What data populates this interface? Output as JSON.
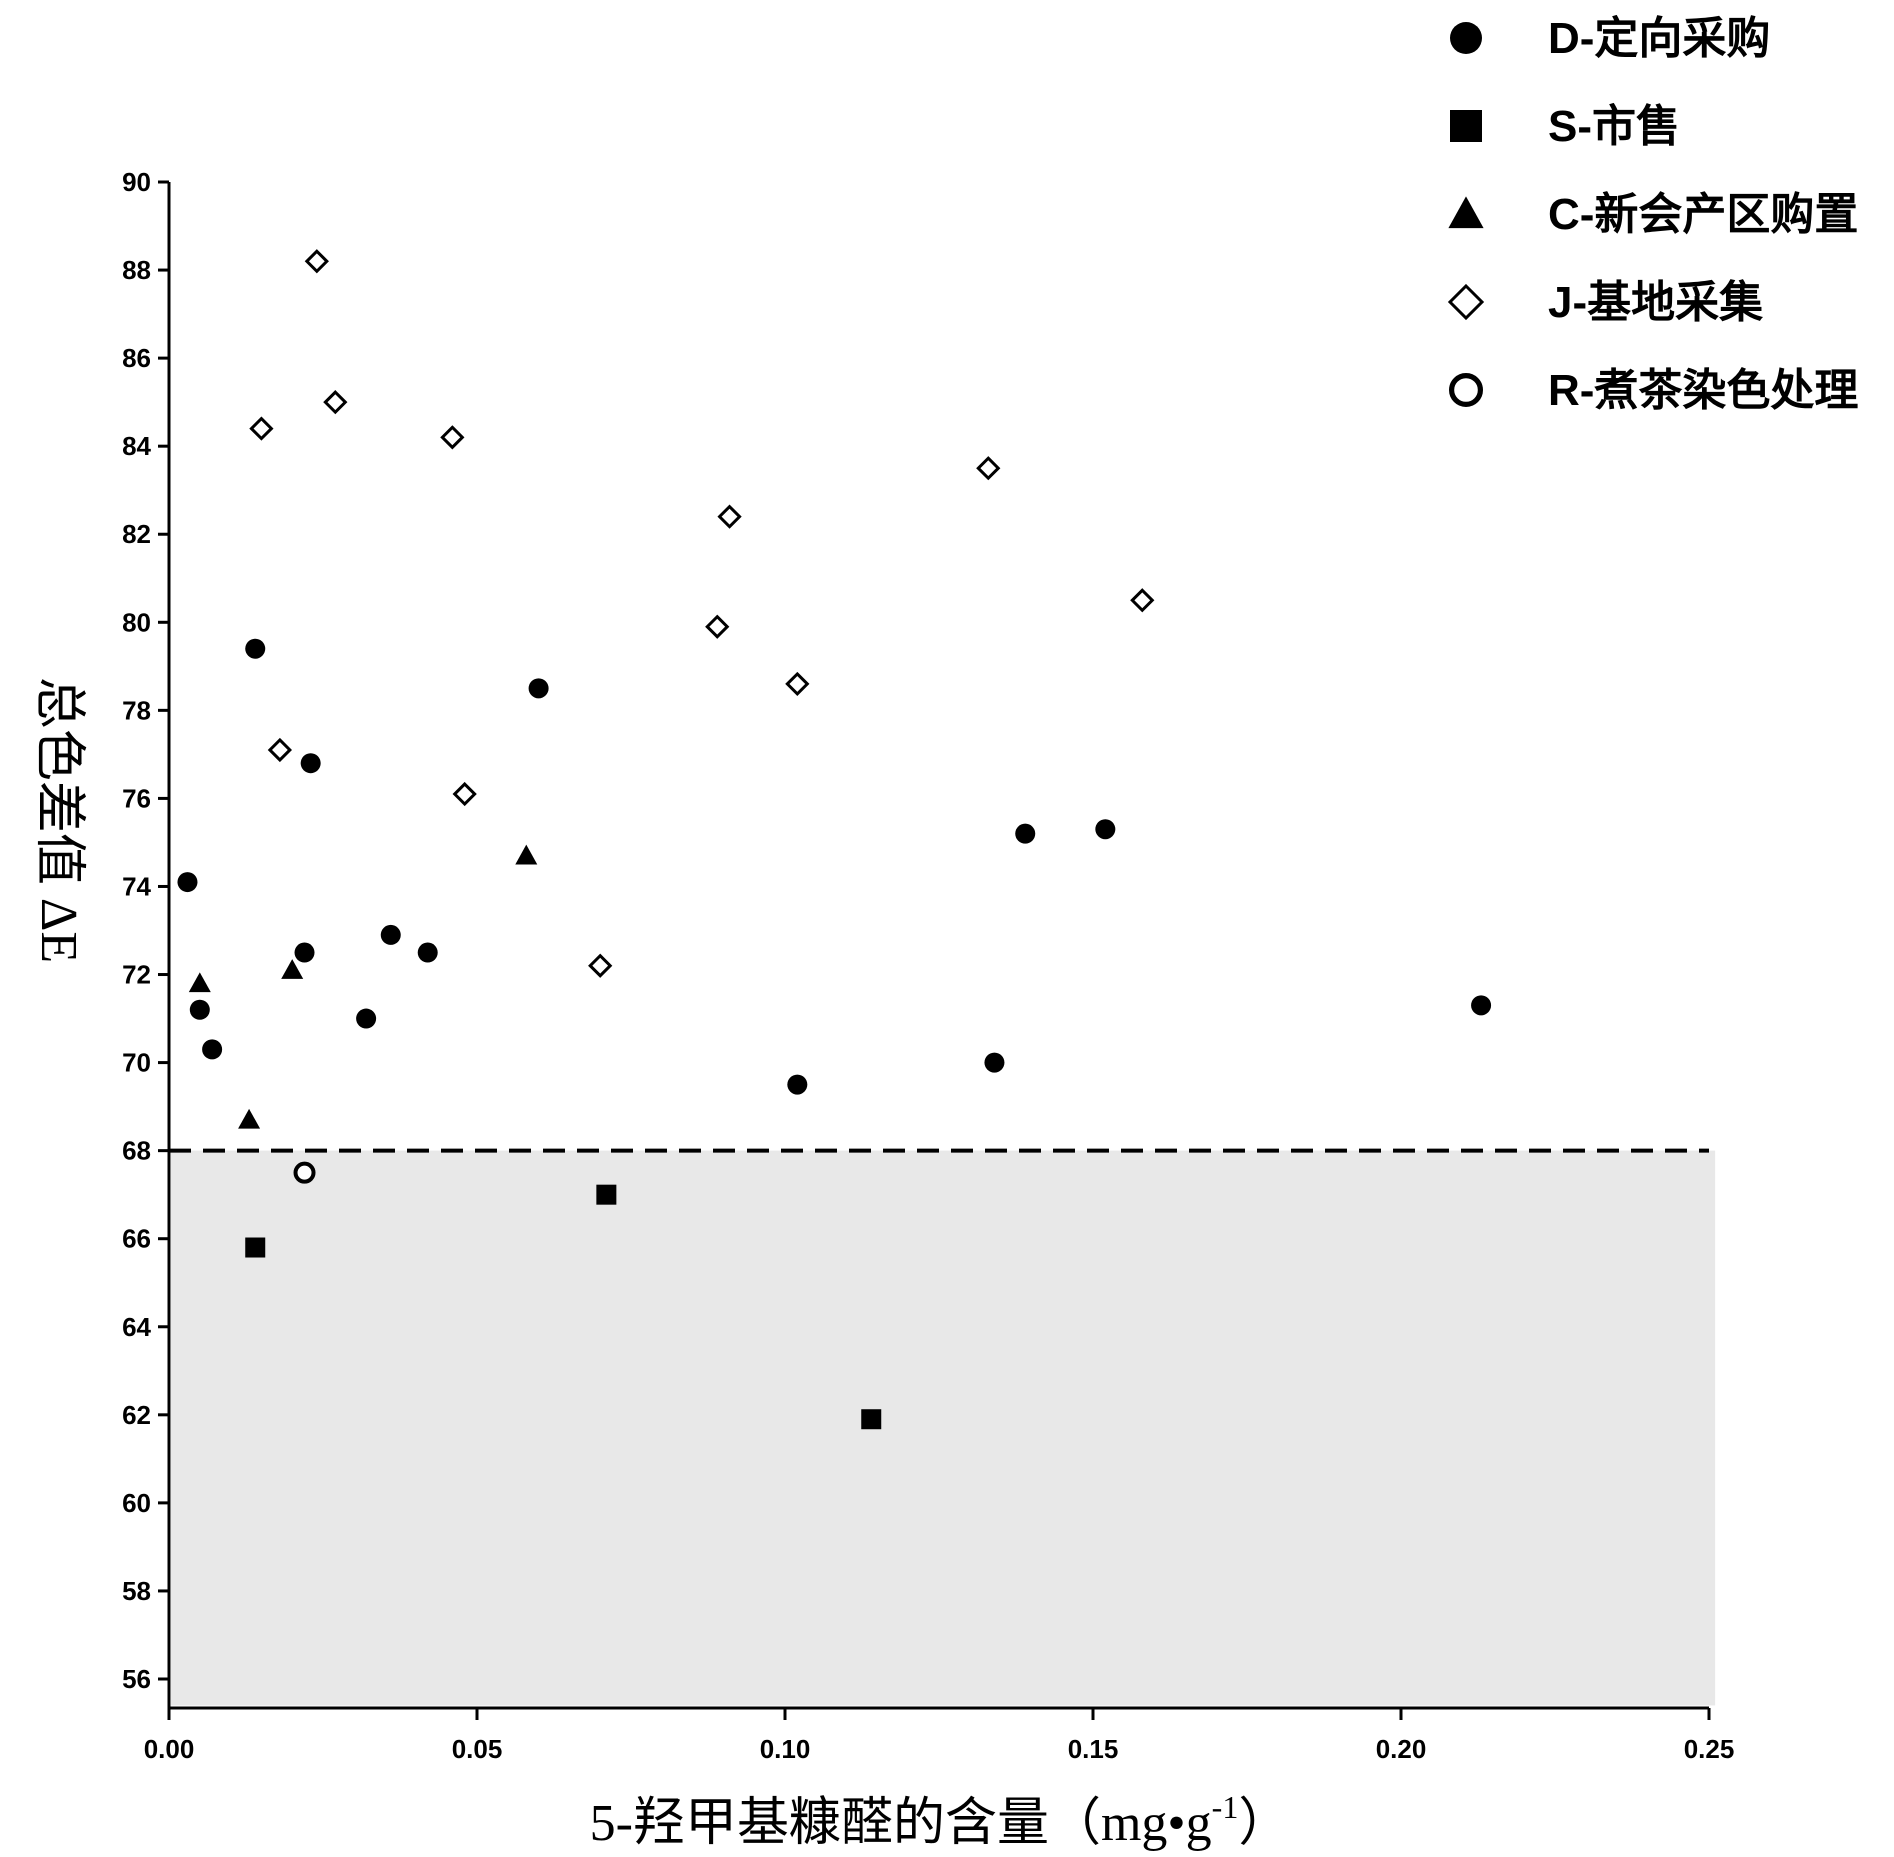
{
  "chart_data": {
    "type": "scatter",
    "xlabel": "5-羟甲基糠醛的含量（mg•g",
    "xlabel_sup": "-1",
    "xlabel_close": "）",
    "ylabel": "总色差值 ΔE",
    "xlim": [
      0.0,
      0.25
    ],
    "ylim": [
      55,
      90
    ],
    "x_ticks": [
      0.0,
      0.05,
      0.1,
      0.15,
      0.2,
      0.25
    ],
    "x_tick_labels": [
      "0.00",
      "0.05",
      "0.10",
      "0.15",
      "0.20",
      "0.25"
    ],
    "y_ticks": [
      56,
      58,
      60,
      62,
      64,
      66,
      68,
      70,
      72,
      74,
      76,
      78,
      80,
      82,
      84,
      86,
      88,
      90
    ],
    "y_tick_labels": [
      "56",
      "58",
      "60",
      "62",
      "64",
      "66",
      "68",
      "70",
      "72",
      "74",
      "76",
      "78",
      "80",
      "82",
      "84",
      "86",
      "88",
      "90"
    ],
    "threshold_line": {
      "y": 68,
      "style": "dashed"
    },
    "shaded_region": {
      "y_from": 55.4,
      "y_to": 68,
      "x_from": 0.0,
      "x_to": 0.251,
      "color": "#e8e8e8"
    },
    "legend_position": "top-right",
    "series": [
      {
        "name": "D-定向采购",
        "marker": "filled-circle",
        "points": [
          [
            0.003,
            74.1
          ],
          [
            0.005,
            71.2
          ],
          [
            0.007,
            70.3
          ],
          [
            0.014,
            79.4
          ],
          [
            0.022,
            72.5
          ],
          [
            0.023,
            76.8
          ],
          [
            0.032,
            71.0
          ],
          [
            0.036,
            72.9
          ],
          [
            0.042,
            72.5
          ],
          [
            0.06,
            78.5
          ],
          [
            0.102,
            69.5
          ],
          [
            0.134,
            70.0
          ],
          [
            0.139,
            75.2
          ],
          [
            0.152,
            75.3
          ],
          [
            0.213,
            71.3
          ]
        ]
      },
      {
        "name": "S-市售",
        "marker": "filled-square",
        "points": [
          [
            0.014,
            65.8
          ],
          [
            0.071,
            67.0
          ],
          [
            0.114,
            61.9
          ]
        ]
      },
      {
        "name": "C-新会产区购置",
        "marker": "filled-triangle",
        "points": [
          [
            0.005,
            71.8
          ],
          [
            0.013,
            68.7
          ],
          [
            0.02,
            72.1
          ],
          [
            0.058,
            74.7
          ]
        ]
      },
      {
        "name": "J-基地采集",
        "marker": "open-diamond",
        "points": [
          [
            0.015,
            84.4
          ],
          [
            0.018,
            77.1
          ],
          [
            0.024,
            88.2
          ],
          [
            0.027,
            85.0
          ],
          [
            0.046,
            84.2
          ],
          [
            0.048,
            76.1
          ],
          [
            0.07,
            72.2
          ],
          [
            0.089,
            79.9
          ],
          [
            0.091,
            82.4
          ],
          [
            0.102,
            78.6
          ],
          [
            0.133,
            83.5
          ],
          [
            0.158,
            80.5
          ]
        ]
      },
      {
        "name": "R-煮茶染色处理",
        "marker": "open-circle",
        "points": [
          [
            0.022,
            67.5
          ]
        ]
      }
    ]
  }
}
